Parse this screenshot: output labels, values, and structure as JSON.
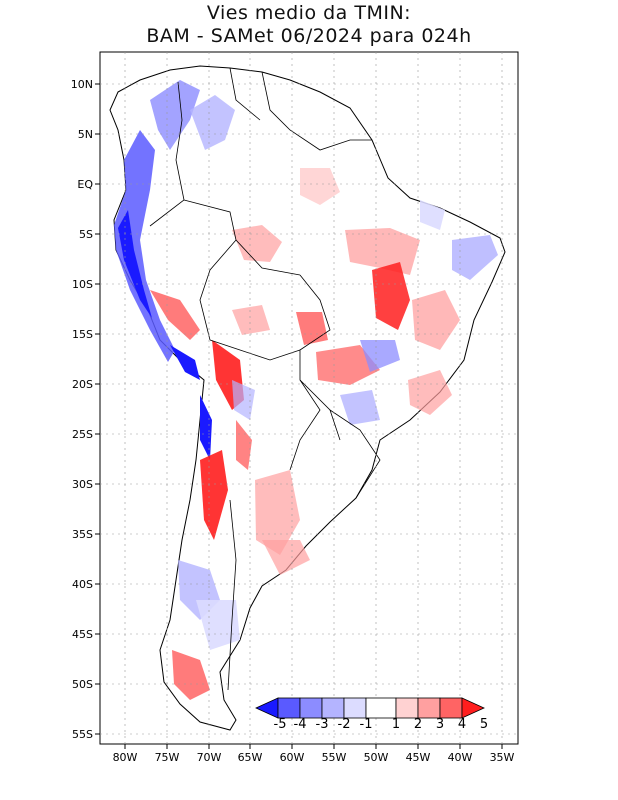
{
  "title": {
    "line1": "Vies medio da TMIN:",
    "line2": "BAM - SAMet 06/2024  para 024h"
  },
  "lat_ticks": [
    "10N",
    "5N",
    "EQ",
    "5S",
    "10S",
    "15S",
    "20S",
    "25S",
    "30S",
    "35S",
    "40S",
    "45S",
    "50S",
    "55S"
  ],
  "lon_ticks": [
    "80W",
    "75W",
    "70W",
    "65W",
    "60W",
    "55W",
    "50W",
    "45W",
    "40W",
    "35W"
  ],
  "colorbar": {
    "labels": [
      "-5",
      "-4",
      "-3",
      "-2",
      "-1",
      "1",
      "2",
      "3",
      "4",
      "5"
    ],
    "colors": [
      "#1a1aff",
      "#5a5aff",
      "#8c8cff",
      "#b4b4ff",
      "#dcdcff",
      "#ffffff",
      "#ffd2d2",
      "#ffa0a0",
      "#ff6464",
      "#ff1e1e"
    ]
  },
  "colors": {
    "land": "#ffffff",
    "border": "#000000",
    "grid": "#9a9a9a"
  }
}
